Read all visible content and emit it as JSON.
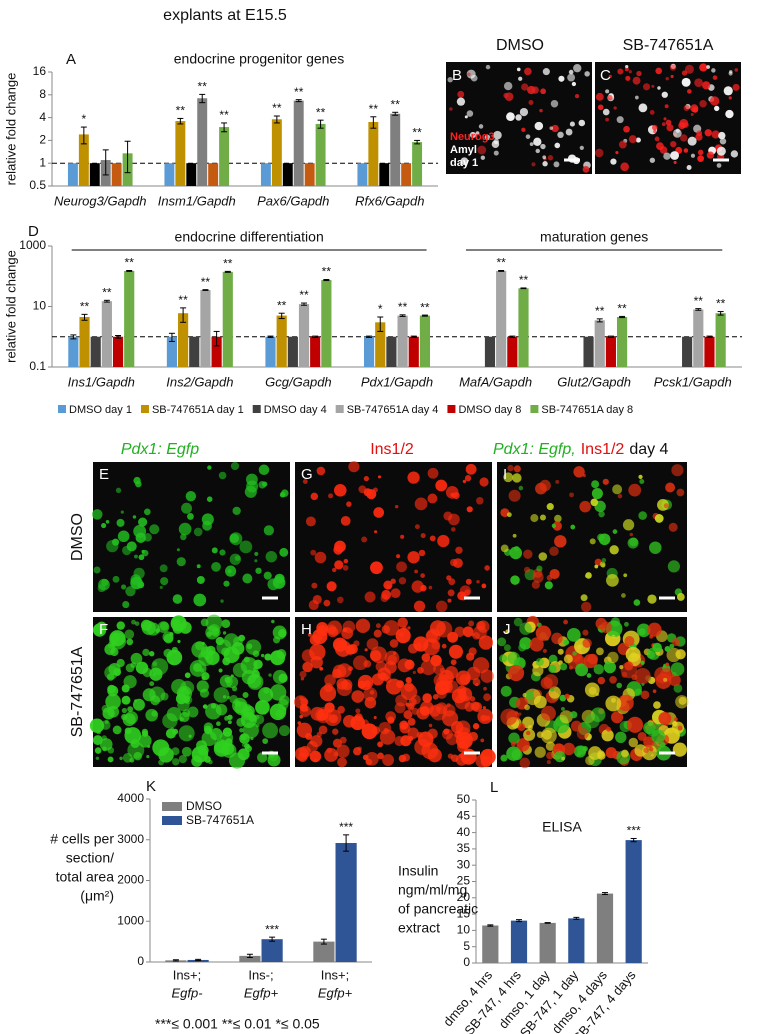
{
  "figure": {
    "title": "explants at E15.5",
    "panel_B": {
      "letter": "B",
      "header": "DMSO",
      "stains": [
        "Neurog3",
        "Amyl"
      ],
      "time": "day 1"
    },
    "panel_C": {
      "letter": "C",
      "header": "SB-747651A"
    },
    "panels_E_J": {
      "columns": [
        "Pdx1: Egfp",
        "Ins1/2"
      ],
      "merge": [
        "Pdx1: Egfp,",
        "Ins1/2",
        "day 4"
      ],
      "rows": [
        "DMSO",
        "SB-747651A"
      ],
      "letters": [
        "E",
        "G",
        "I",
        "F",
        "H",
        "J"
      ]
    }
  },
  "chart_data": [
    {
      "type": "bar",
      "panel": "A",
      "title": "endocrine progenitor genes",
      "ylabel": "relative fold change",
      "log_scale": true,
      "ylim": [
        0.5,
        16
      ],
      "yticks": [
        0.5,
        1,
        2,
        4,
        8,
        16
      ],
      "reference_line": 1,
      "categories": [
        "Neurog3/Gapdh",
        "Insm1/Gapdh",
        "Pax6/Gapdh",
        "Rfx6/Gapdh"
      ],
      "series": [
        {
          "color": "#5b9bd5",
          "values": [
            1,
            1,
            1,
            1
          ]
        },
        {
          "color": "#bf9000",
          "values": [
            2.4,
            3.6,
            3.8,
            3.5
          ],
          "errors": [
            0.6,
            0.3,
            0.4,
            0.6
          ],
          "significance": [
            "*",
            "**",
            "**",
            "**"
          ]
        },
        {
          "color": "#000000",
          "values": [
            1,
            1,
            1,
            1
          ]
        },
        {
          "color": "#7f7f7f",
          "values": [
            1.1,
            7.2,
            6.7,
            4.5
          ],
          "errors": [
            0.4,
            0.9,
            0.2,
            0.2
          ],
          "significance": [
            null,
            "**",
            "**",
            "**"
          ]
        },
        {
          "color": "#c55a11",
          "values": [
            1,
            1,
            1,
            1
          ]
        },
        {
          "color": "#70ad47",
          "values": [
            1.35,
            3.0,
            3.3,
            1.9
          ],
          "errors": [
            0.6,
            0.4,
            0.4,
            0.1
          ],
          "significance": [
            null,
            "**",
            "**",
            "**"
          ]
        }
      ]
    },
    {
      "type": "bar",
      "panel": "D",
      "ylabel": "relative fold change",
      "group_labels": [
        "endocrine differentiation",
        "maturation genes"
      ],
      "log_scale": true,
      "ylim": [
        0.1,
        1000
      ],
      "yticks": [
        0.1,
        10,
        1000
      ],
      "reference_line": 1,
      "legend": "bottom",
      "categories": [
        "Ins1/Gapdh",
        "Ins2/Gapdh",
        "Gcg/Gapdh",
        "Pdx1/Gapdh",
        "MafA/Gapdh",
        "Glut2/Gapdh",
        "Pcsk1/Gapdh"
      ],
      "series": [
        {
          "name": "DMSO day 1",
          "color": "#5b9bd5",
          "values": [
            1,
            1,
            1,
            1,
            null,
            null,
            null
          ],
          "errors": [
            0.15,
            0.3,
            0.05,
            0.05,
            null,
            null,
            null
          ]
        },
        {
          "name": "SB-747651A day 1",
          "color": "#bf9000",
          "values": [
            4.5,
            6,
            5,
            3,
            null,
            null,
            null
          ],
          "errors": [
            1,
            3,
            1,
            1.5,
            null,
            null,
            null
          ],
          "significance": [
            "**",
            "**",
            "**",
            "*",
            null,
            null,
            null
          ]
        },
        {
          "name": "DMSO day 4",
          "color": "#404040",
          "values": [
            1,
            1,
            1,
            1,
            1,
            1,
            1
          ]
        },
        {
          "name": "SB-747651A day 4",
          "color": "#a5a5a5",
          "values": [
            15,
            35,
            12,
            5,
            150,
            3.5,
            8
          ],
          "errors": [
            1,
            1,
            1,
            0.3,
            5,
            0.4,
            0.5
          ],
          "significance": [
            "**",
            "**",
            "**",
            "**",
            "**",
            "**",
            "**"
          ]
        },
        {
          "name": "DMSO day 8",
          "color": "#c00000",
          "values": [
            1,
            1,
            1,
            1,
            1,
            1,
            1
          ],
          "errors": [
            0.1,
            0.5,
            0.05,
            0.05,
            0.05,
            0.05,
            0.05
          ]
        },
        {
          "name": "SB-747651A day 8",
          "color": "#70ad47",
          "values": [
            150,
            140,
            75,
            5,
            40,
            4.5,
            6
          ],
          "errors": [
            5,
            5,
            3,
            0.2,
            1,
            0.2,
            0.8
          ],
          "significance": [
            "**",
            "**",
            "**",
            "**",
            "**",
            "**",
            "**"
          ]
        }
      ]
    },
    {
      "type": "bar",
      "panel": "K",
      "ylabel": [
        "# cells per",
        "section/",
        "total area",
        "(μm²)"
      ],
      "ylim": [
        0,
        4000
      ],
      "yticks": [
        0,
        1000,
        2000,
        3000,
        4000
      ],
      "legend": "top-left",
      "note": "***≤ 0.001 **≤ 0.01 *≤ 0.05",
      "categories": [
        [
          "Ins+;",
          "Egfp-"
        ],
        [
          "Ins-;",
          "Egfp+"
        ],
        [
          "Ins+;",
          "Egfp+"
        ]
      ],
      "series": [
        {
          "name": "DMSO",
          "color": "#7f7f7f",
          "values": [
            40,
            150,
            500
          ],
          "errors": [
            15,
            40,
            60
          ]
        },
        {
          "name": "SB-747651A",
          "color": "#2f5597",
          "values": [
            50,
            560,
            2920
          ],
          "errors": [
            15,
            50,
            200
          ],
          "significance": [
            null,
            "***",
            "***"
          ]
        }
      ]
    },
    {
      "type": "bar",
      "panel": "L",
      "title": "ELISA",
      "ylabel": [
        "Insulin",
        "ngm/ml/mg",
        "of pancreatic",
        "extract"
      ],
      "ylim": [
        0,
        50
      ],
      "yticks": [
        0,
        5,
        10,
        15,
        20,
        25,
        30,
        35,
        40,
        45,
        50
      ],
      "categories": [
        "dmso, 4 hrs",
        "SB-747, 4 hrs",
        "dmso, 1 day",
        "SB-747, 1 day",
        "dmso, 4 days",
        "SB-747, 4 days"
      ],
      "series": [
        {
          "colors": [
            "#7f7f7f",
            "#2f5597",
            "#7f7f7f",
            "#2f5597",
            "#7f7f7f",
            "#2f5597"
          ],
          "values": [
            11.5,
            13,
            12.3,
            13.7,
            21.3,
            37.7
          ],
          "errors": [
            0.2,
            0.3,
            0.1,
            0.3,
            0.3,
            0.5
          ],
          "significance": [
            null,
            null,
            null,
            null,
            null,
            "***"
          ]
        }
      ]
    }
  ]
}
